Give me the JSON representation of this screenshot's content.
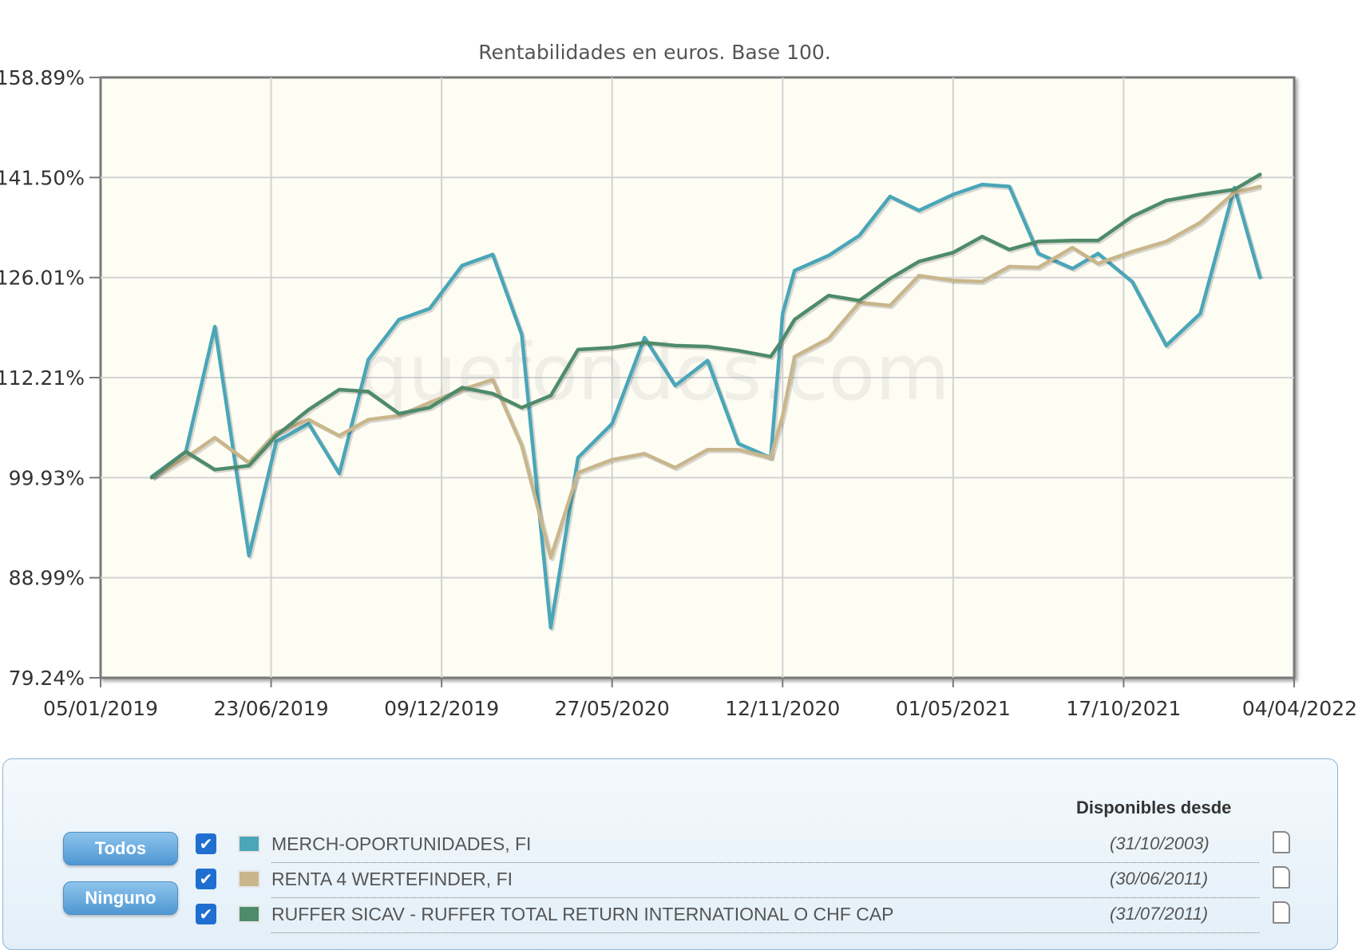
{
  "chart_data": {
    "type": "line",
    "title": "Rentabilidades en euros. Base 100.",
    "watermark": "quefondos.com",
    "y_ticks": [
      "158.89%",
      "141.50%",
      "126.01%",
      "112.21%",
      "99.93%",
      "88.99%",
      "79.24%"
    ],
    "x_ticks": [
      "05/01/2019",
      "23/06/2019",
      "09/12/2019",
      "27/05/2020",
      "12/11/2020",
      "01/05/2021",
      "17/10/2021",
      "04/04/2022"
    ],
    "x_range": [
      0,
      7
    ],
    "y_tick_levels": [
      0,
      1,
      2,
      3,
      4,
      5,
      6
    ],
    "series": [
      {
        "name": "MERCH-OPORTUNIDADES, FI",
        "color": "#4aa6b8",
        "x": [
          0.3,
          0.5,
          0.67,
          0.87,
          1.03,
          1.22,
          1.4,
          1.57,
          1.75,
          1.93,
          2.12,
          2.3,
          2.47,
          2.64,
          2.8,
          3.0,
          3.19,
          3.37,
          3.56,
          3.74,
          3.93,
          4.0,
          4.07,
          4.27,
          4.45,
          4.63,
          4.8,
          5.0,
          5.17,
          5.33,
          5.5,
          5.7,
          5.85,
          6.05,
          6.25,
          6.45,
          6.65,
          6.8
        ],
        "y": [
          3.99,
          3.74,
          2.49,
          4.78,
          3.64,
          3.46,
          3.96,
          2.82,
          2.42,
          2.31,
          1.88,
          1.77,
          2.57,
          5.5,
          3.8,
          3.46,
          2.6,
          3.08,
          2.83,
          3.66,
          3.8,
          2.36,
          1.93,
          1.78,
          1.58,
          1.19,
          1.33,
          1.17,
          1.07,
          1.09,
          1.76,
          1.91,
          1.76,
          2.04,
          2.68,
          2.36,
          1.1,
          2.0
        ]
      },
      {
        "name": "RENTA 4 WERTEFINDER, FI",
        "color": "#c9b68c",
        "x": [
          0.3,
          0.5,
          0.67,
          0.87,
          1.03,
          1.22,
          1.4,
          1.57,
          1.75,
          1.93,
          2.12,
          2.3,
          2.47,
          2.64,
          2.8,
          3.0,
          3.19,
          3.37,
          3.56,
          3.74,
          3.93,
          4.0,
          4.07,
          4.27,
          4.45,
          4.63,
          4.8,
          5.0,
          5.17,
          5.33,
          5.5,
          5.7,
          5.85,
          6.05,
          6.25,
          6.45,
          6.65,
          6.8
        ],
        "y": [
          4.0,
          3.8,
          3.6,
          3.85,
          3.55,
          3.42,
          3.58,
          3.42,
          3.38,
          3.25,
          3.12,
          3.02,
          3.68,
          4.8,
          3.95,
          3.82,
          3.76,
          3.9,
          3.72,
          3.72,
          3.8,
          3.38,
          2.79,
          2.61,
          2.25,
          2.28,
          1.98,
          2.03,
          2.04,
          1.89,
          1.9,
          1.7,
          1.86,
          1.74,
          1.64,
          1.45,
          1.15,
          1.09
        ]
      },
      {
        "name": "RUFFER SICAV - RUFFER TOTAL RETURN INTERNATIONAL O CHF CAP",
        "color": "#4e8b6a",
        "x": [
          0.3,
          0.5,
          0.67,
          0.87,
          1.03,
          1.22,
          1.4,
          1.57,
          1.75,
          1.93,
          2.12,
          2.3,
          2.47,
          2.64,
          2.8,
          3.0,
          3.19,
          3.37,
          3.56,
          3.74,
          3.93,
          4.0,
          4.07,
          4.27,
          4.45,
          4.63,
          4.8,
          5.0,
          5.17,
          5.33,
          5.5,
          5.7,
          5.85,
          6.05,
          6.25,
          6.45,
          6.65,
          6.8
        ],
        "y": [
          4.0,
          3.74,
          3.92,
          3.88,
          3.58,
          3.32,
          3.12,
          3.14,
          3.36,
          3.3,
          3.1,
          3.16,
          3.3,
          3.18,
          2.72,
          2.7,
          2.65,
          2.68,
          2.69,
          2.73,
          2.79,
          2.62,
          2.42,
          2.18,
          2.23,
          2.01,
          1.84,
          1.75,
          1.59,
          1.72,
          1.64,
          1.63,
          1.63,
          1.39,
          1.23,
          1.17,
          1.12,
          0.97
        ]
      }
    ]
  },
  "legend": {
    "header": "Disponibles desde",
    "buttons": {
      "all": "Todos",
      "none": "Ninguno"
    },
    "items": [
      {
        "name": "MERCH-OPORTUNIDADES, FI",
        "date": "(31/10/2003)",
        "color": "#4aa6b8",
        "checked": true
      },
      {
        "name": "RENTA 4 WERTEFINDER, FI",
        "date": "(30/06/2011)",
        "color": "#c9b68c",
        "checked": true
      },
      {
        "name": "RUFFER SICAV - RUFFER TOTAL RETURN INTERNATIONAL O CHF CAP",
        "date": "(31/07/2011)",
        "color": "#4e8b6a",
        "checked": true
      }
    ],
    "check_glyph": "✔",
    "doc_icon": "document-icon"
  }
}
